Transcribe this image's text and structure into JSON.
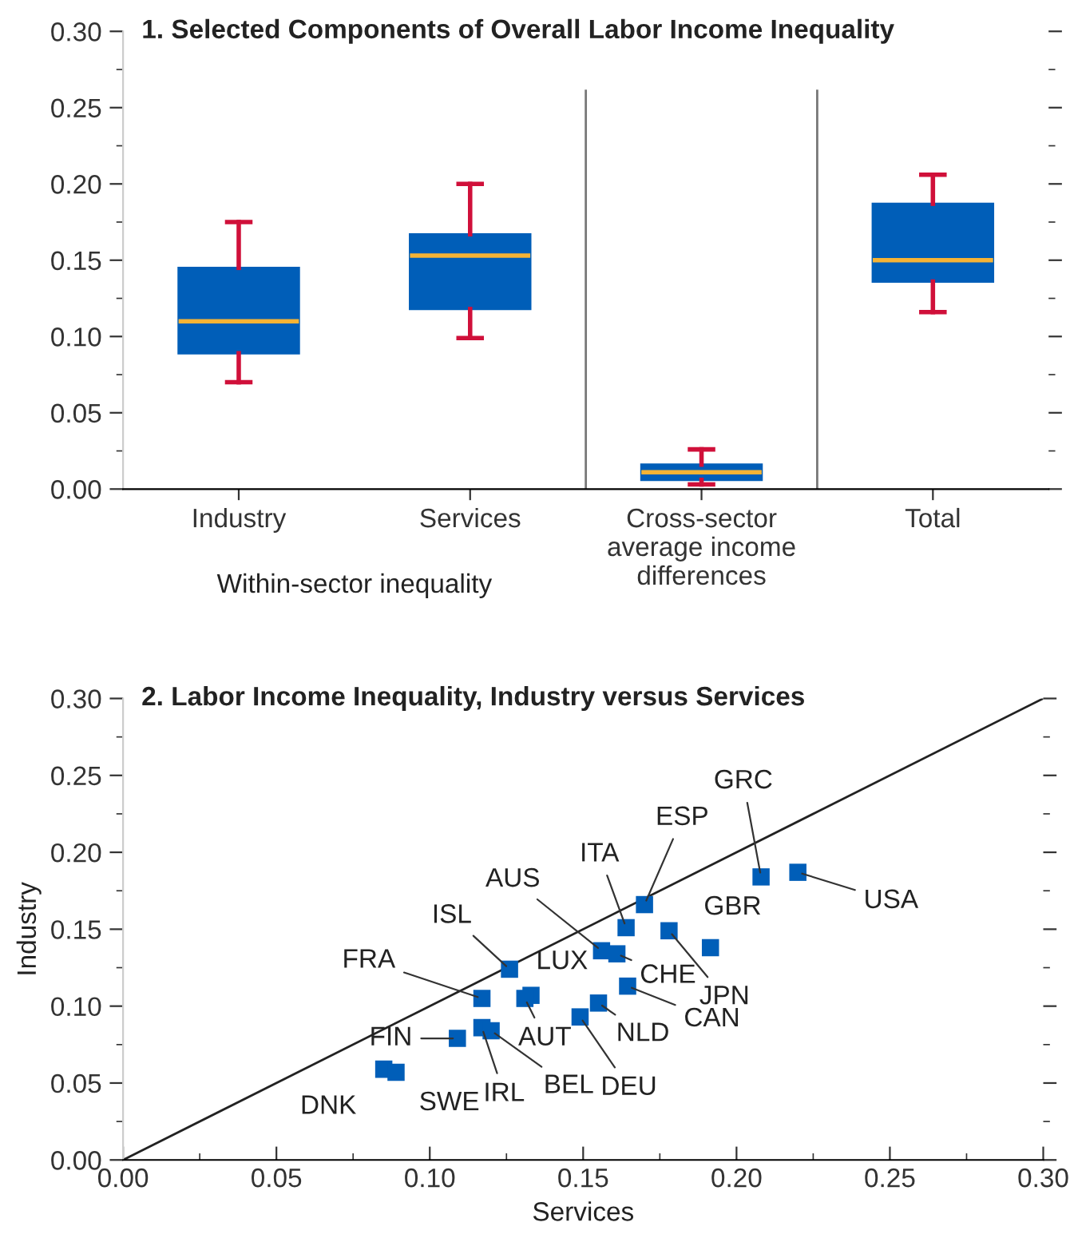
{
  "chart_data": [
    {
      "type": "box",
      "title": "1. Selected Components of Overall Labor Income Inequality",
      "categories": [
        "Industry",
        "Services",
        "Cross-sector\naverage income\ndifferences",
        "Total"
      ],
      "boxes": [
        {
          "low": 0.07,
          "q1": 0.089,
          "median": 0.11,
          "q3": 0.145,
          "high": 0.175
        },
        {
          "low": 0.099,
          "q1": 0.118,
          "median": 0.153,
          "q3": 0.167,
          "high": 0.2
        },
        {
          "low": 0.003,
          "q1": 0.006,
          "median": 0.011,
          "q3": 0.016,
          "high": 0.026
        },
        {
          "low": 0.116,
          "q1": 0.136,
          "median": 0.15,
          "q3": 0.187,
          "high": 0.206
        }
      ],
      "color": "#005eb8",
      "ylim": [
        0,
        0.3
      ],
      "yticks": [
        {
          "value": 0,
          "label": "0.00"
        },
        {
          "value": 0.05,
          "label": "0.05"
        },
        {
          "value": 0.1,
          "label": "0.10"
        },
        {
          "value": 0.15,
          "label": "0.15"
        },
        {
          "value": 0.2,
          "label": "0.20"
        },
        {
          "value": 0.25,
          "label": "0.25"
        },
        {
          "value": 0.3,
          "label": "0.30"
        }
      ],
      "annotations": [
        "Within-sector inequality"
      ],
      "grid": false,
      "legend": false
    },
    {
      "type": "scatter",
      "title": "2. Labor Income Inequality, Industry versus Services",
      "xlabel": "Services",
      "ylabel": "Industry",
      "series": [
        {
          "type": "scatter",
          "color": "#005eb8",
          "marker": "square",
          "x": [
            0.208,
            0.22,
            0.17,
            0.164,
            0.1915,
            0.178,
            0.156,
            0.161,
            0.126,
            0.133,
            0.131,
            0.117,
            0.1645,
            0.155,
            0.149,
            0.109,
            0.117,
            0.12,
            0.085,
            0.089
          ],
          "values": [
            0.184,
            0.187,
            0.166,
            0.151,
            0.138,
            0.149,
            0.136,
            0.134,
            0.124,
            0.107,
            0.105,
            0.105,
            0.113,
            0.102,
            0.093,
            0.079,
            0.086,
            0.084,
            0.059,
            0.057
          ]
        },
        {
          "type": "line",
          "color": "#222222",
          "marker": "none",
          "x": [
            0,
            0.3
          ],
          "values": [
            0,
            0.3
          ]
        }
      ],
      "annotations": [
        {
          "text": "GRC",
          "x": 0.208,
          "y": 0.184
        },
        {
          "text": "USA",
          "x": 0.22,
          "y": 0.187
        },
        {
          "text": "ESP",
          "x": 0.17,
          "y": 0.166
        },
        {
          "text": "ITA",
          "x": 0.164,
          "y": 0.151
        },
        {
          "text": "GBR",
          "x": 0.1915,
          "y": 0.138
        },
        {
          "text": "JPN",
          "x": 0.178,
          "y": 0.149
        },
        {
          "text": "AUS",
          "x": 0.156,
          "y": 0.136
        },
        {
          "text": "CHE",
          "x": 0.161,
          "y": 0.134
        },
        {
          "text": "ISL",
          "x": 0.126,
          "y": 0.124
        },
        {
          "text": "LUX",
          "x": 0.133,
          "y": 0.107
        },
        {
          "text": "AUT",
          "x": 0.131,
          "y": 0.105
        },
        {
          "text": "FRA",
          "x": 0.117,
          "y": 0.105
        },
        {
          "text": "CAN",
          "x": 0.1645,
          "y": 0.113
        },
        {
          "text": "NLD",
          "x": 0.155,
          "y": 0.102
        },
        {
          "text": "DEU",
          "x": 0.149,
          "y": 0.093
        },
        {
          "text": "FIN",
          "x": 0.109,
          "y": 0.079
        },
        {
          "text": "IRL",
          "x": 0.117,
          "y": 0.086
        },
        {
          "text": "BEL",
          "x": 0.12,
          "y": 0.084
        },
        {
          "text": "DNK",
          "x": 0.085,
          "y": 0.059
        },
        {
          "text": "SWE",
          "x": 0.089,
          "y": 0.057
        }
      ],
      "xlim": [
        0,
        0.3
      ],
      "xticks": [
        {
          "value": 0,
          "label": "0.00"
        },
        {
          "value": 0.05,
          "label": "0.05"
        },
        {
          "value": 0.1,
          "label": "0.10"
        },
        {
          "value": 0.15,
          "label": "0.15"
        },
        {
          "value": 0.2,
          "label": "0.20"
        },
        {
          "value": 0.25,
          "label": "0.25"
        },
        {
          "value": 0.3,
          "label": "0.30"
        }
      ],
      "ylim": [
        0,
        0.3
      ],
      "yticks": [
        {
          "value": 0,
          "label": "0.00"
        },
        {
          "value": 0.05,
          "label": "0.05"
        },
        {
          "value": 0.1,
          "label": "0.10"
        },
        {
          "value": 0.15,
          "label": "0.15"
        },
        {
          "value": 0.2,
          "label": "0.20"
        },
        {
          "value": 0.25,
          "label": "0.25"
        },
        {
          "value": 0.3,
          "label": "0.30"
        }
      ],
      "grid": false,
      "legend": false
    }
  ]
}
